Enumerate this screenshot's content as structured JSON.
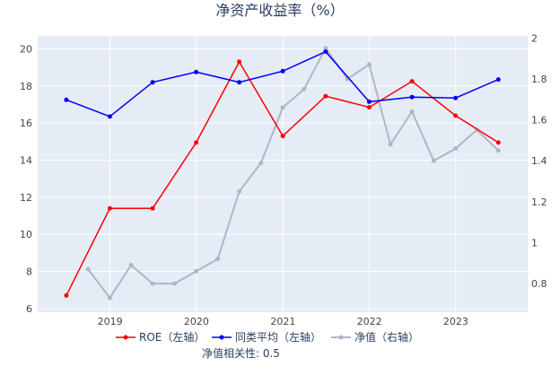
{
  "chart_data": {
    "type": "line",
    "title": "净资产收益率（%）",
    "x_ticks": [
      "2019",
      "2020",
      "2021",
      "2022",
      "2023"
    ],
    "y_left": {
      "ticks": [
        6,
        8,
        10,
        12,
        14,
        16,
        18,
        20
      ],
      "range": [
        5.8,
        20.7
      ]
    },
    "y_right": {
      "ticks": [
        0.8,
        1,
        1.2,
        1.4,
        1.6,
        1.8,
        2
      ],
      "range": [
        0.66,
        2.01
      ],
      "tick_labels": [
        "0.8",
        "1",
        "1.2",
        "1.4",
        "1.6",
        "1.8",
        "2"
      ]
    },
    "x_range": [
      "2018-03-01",
      "2023-11-01"
    ],
    "series": [
      {
        "name": "ROE（左轴）",
        "axis": "left",
        "color": "#ff0000",
        "x": [
          "2018-06-30",
          "2018-12-31",
          "2019-06-30",
          "2019-12-31",
          "2020-06-30",
          "2020-12-31",
          "2021-06-30",
          "2021-12-31",
          "2022-06-30",
          "2022-12-31",
          "2023-06-30"
        ],
        "y": [
          6.7,
          11.4,
          11.4,
          14.95,
          19.3,
          15.3,
          17.45,
          16.85,
          18.25,
          16.4,
          14.95
        ]
      },
      {
        "name": "同类平均（左轴）",
        "axis": "left",
        "color": "#0000ff",
        "x": [
          "2018-06-30",
          "2018-12-31",
          "2019-06-30",
          "2019-12-31",
          "2020-06-30",
          "2020-12-31",
          "2021-06-30",
          "2021-12-31",
          "2022-06-30",
          "2022-12-31",
          "2023-06-30"
        ],
        "y": [
          17.25,
          16.35,
          18.2,
          18.75,
          18.2,
          18.8,
          19.85,
          17.15,
          17.4,
          17.35,
          18.35
        ]
      },
      {
        "name": "净值（右轴）",
        "axis": "right",
        "color": "#b0b6c4",
        "x": [
          "2018-09-30",
          "2018-12-31",
          "2019-03-31",
          "2019-06-30",
          "2019-09-30",
          "2019-12-31",
          "2020-03-31",
          "2020-06-30",
          "2020-09-30",
          "2020-12-31",
          "2021-03-31",
          "2021-06-30",
          "2021-09-30",
          "2021-12-31",
          "2022-03-31",
          "2022-06-30",
          "2022-09-30",
          "2022-12-31",
          "2023-03-31",
          "2023-06-30"
        ],
        "y": [
          0.87,
          0.73,
          0.89,
          0.8,
          0.8,
          0.86,
          0.92,
          1.25,
          1.39,
          1.66,
          1.75,
          1.95,
          1.8,
          1.87,
          1.48,
          1.64,
          1.4,
          1.46,
          1.55,
          1.45
        ]
      }
    ],
    "legend_position": "bottom",
    "grid": true
  },
  "footnote": "净值相关性: 0.5",
  "colors": {
    "plot_bg": "#e5ecf6",
    "grid": "#ffffff",
    "text": "#2a3f5f"
  }
}
